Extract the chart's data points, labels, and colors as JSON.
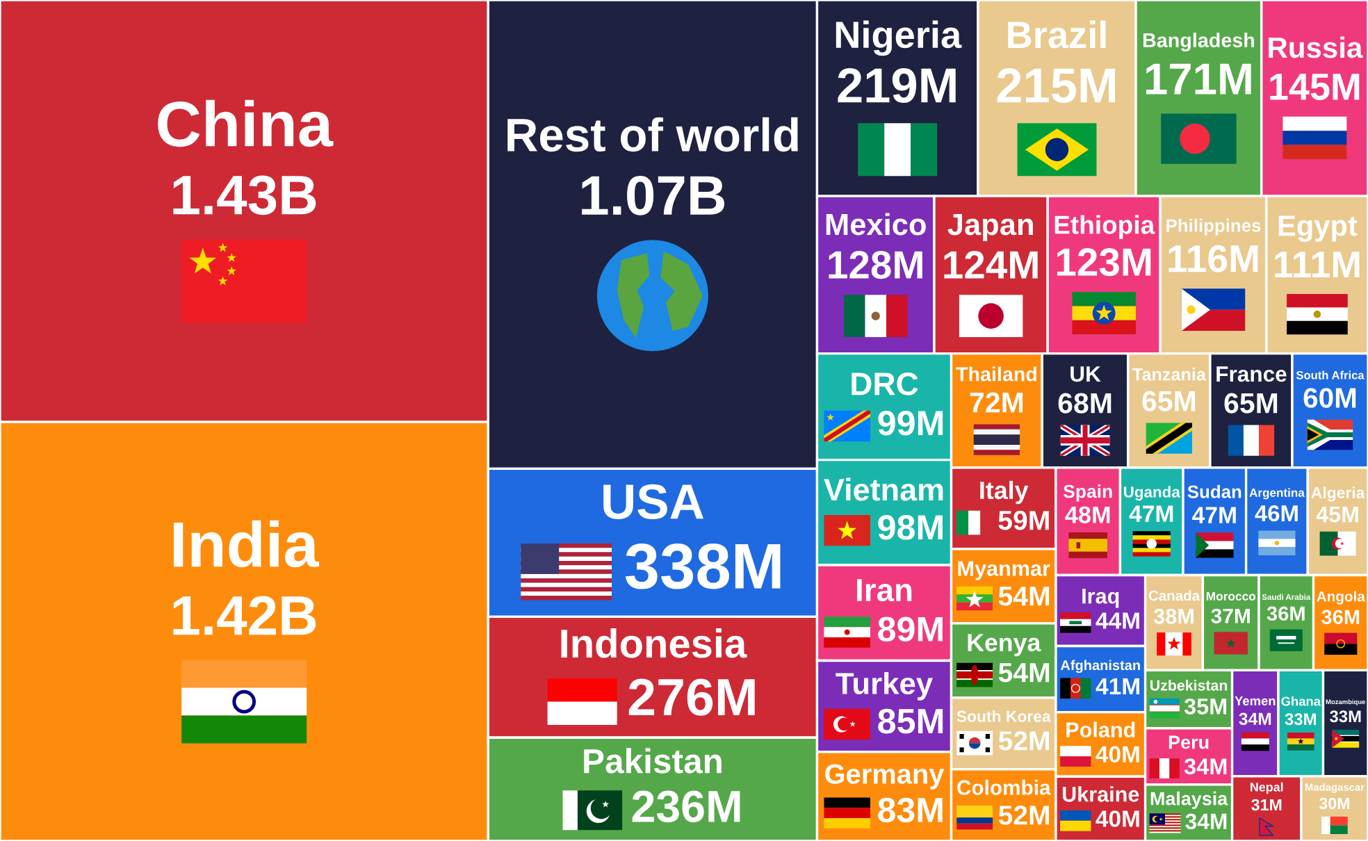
{
  "chart_data": {
    "type": "other",
    "categories": [
      "China",
      "India",
      "Rest of world",
      "USA",
      "Indonesia",
      "Pakistan",
      "Nigeria",
      "Brazil",
      "Bangladesh",
      "Russia",
      "Mexico",
      "Japan",
      "Ethiopia",
      "Philippines",
      "Egypt",
      "DRC",
      "Vietnam",
      "Iran",
      "Turkey",
      "Germany",
      "Thailand",
      "UK",
      "Tanzania",
      "France",
      "South Africa",
      "Italy",
      "Myanmar",
      "Kenya",
      "South Korea",
      "Colombia",
      "Spain",
      "Uganda",
      "Sudan",
      "Argentina",
      "Algeria",
      "Iraq",
      "Afghanistan",
      "Poland",
      "Ukraine",
      "Canada",
      "Morocco",
      "Saudi Arabia",
      "Angola",
      "Uzbekistan",
      "Peru",
      "Malaysia",
      "Yemen",
      "Ghana",
      "Mozambique",
      "Nepal",
      "Madagascar"
    ],
    "values": [
      1430000000,
      1420000000,
      1070000000,
      338000000,
      276000000,
      236000000,
      219000000,
      215000000,
      171000000,
      145000000,
      128000000,
      124000000,
      123000000,
      116000000,
      111000000,
      99000000,
      98000000,
      89000000,
      85000000,
      83000000,
      72000000,
      68000000,
      65000000,
      65000000,
      60000000,
      59000000,
      54000000,
      54000000,
      52000000,
      52000000,
      48000000,
      47000000,
      47000000,
      46000000,
      45000000,
      44000000,
      41000000,
      40000000,
      40000000,
      38000000,
      37000000,
      36000000,
      36000000,
      35000000,
      34000000,
      34000000,
      34000000,
      33000000,
      33000000,
      31000000,
      30000000
    ],
    "value_labels": [
      "1.43B",
      "1.42B",
      "1.07B",
      "338M",
      "276M",
      "236M",
      "219M",
      "215M",
      "171M",
      "145M",
      "128M",
      "124M",
      "123M",
      "116M",
      "111M",
      "99M",
      "98M",
      "89M",
      "85M",
      "83M",
      "72M",
      "68M",
      "65M",
      "65M",
      "60M",
      "59M",
      "54M",
      "54M",
      "52M",
      "52M",
      "48M",
      "47M",
      "47M",
      "46M",
      "45M",
      "44M",
      "41M",
      "40M",
      "40M",
      "38M",
      "37M",
      "36M",
      "36M",
      "35M",
      "34M",
      "34M",
      "34M",
      "33M",
      "33M",
      "31M",
      "30M"
    ],
    "colors": [
      "#cd2a36",
      "#fd8c0d",
      "#1e2240",
      "#1f6ae0",
      "#cd2a36",
      "#55a84a",
      "#1e2240",
      "#eac98e",
      "#55a84a",
      "#f0397d",
      "#7b2db8",
      "#cd2a36",
      "#f0397d",
      "#eac98e",
      "#eac98e",
      "#1ab5a9",
      "#1ab5a9",
      "#f0397d",
      "#7b2db8",
      "#fd8c0d",
      "#fd8c0d",
      "#1e2240",
      "#eac98e",
      "#1e2240",
      "#1f6ae0",
      "#cd2a36",
      "#fd8c0d",
      "#55a84a",
      "#eac98e",
      "#fd8c0d",
      "#f0397d",
      "#1ab5a9",
      "#1f6ae0",
      "#1f6ae0",
      "#eac98e",
      "#7b2db8",
      "#1f6ae0",
      "#fd8c0d",
      "#cd2a36",
      "#eac98e",
      "#55a84a",
      "#55a84a",
      "#fd8c0d",
      "#55a84a",
      "#f0397d",
      "#55a84a",
      "#7b2db8",
      "#1ab5a9",
      "#1e2240",
      "#cd2a36",
      "#eac98e"
    ]
  }
}
